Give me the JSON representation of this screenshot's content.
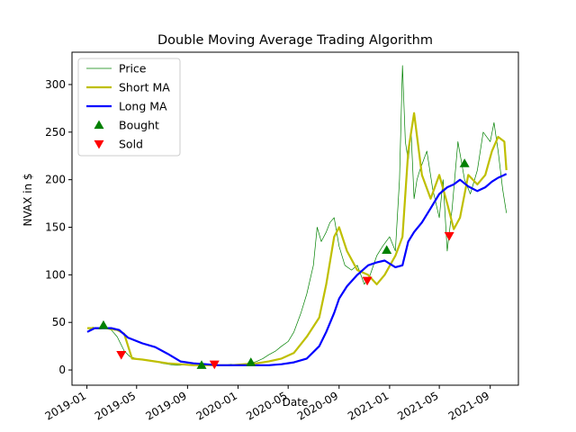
{
  "chart_data": {
    "type": "line",
    "title": "Double Moving Average Trading Algorithm",
    "xlabel": "Date",
    "ylabel": "NVAX in $",
    "xlim": [
      "2018-11-26",
      "2021-11-08"
    ],
    "ylim": [
      -16,
      334
    ],
    "x_ticks": [
      "2019-01",
      "2019-05",
      "2019-09",
      "2020-01",
      "2020-05",
      "2020-09",
      "2021-01",
      "2021-05",
      "2021-09"
    ],
    "y_ticks": [
      0,
      50,
      100,
      150,
      200,
      250,
      300
    ],
    "grid": false,
    "legend_position": "upper-left",
    "colors": {
      "price": "#008000",
      "short_ma": "#bfbf00",
      "long_ma": "#0000ff",
      "bought": "#008000",
      "sold": "#ff0000"
    },
    "series": [
      {
        "name": "Price",
        "x": [
          "2019-01-02",
          "2019-01-15",
          "2019-02-01",
          "2019-02-15",
          "2019-03-01",
          "2019-03-15",
          "2019-04-01",
          "2019-04-15",
          "2019-05-01",
          "2019-05-15",
          "2019-06-01",
          "2019-06-15",
          "2019-07-01",
          "2019-07-15",
          "2019-08-01",
          "2019-08-15",
          "2019-09-01",
          "2019-09-15",
          "2019-10-01",
          "2019-10-15",
          "2019-11-01",
          "2019-11-15",
          "2019-12-01",
          "2019-12-15",
          "2020-01-01",
          "2020-01-15",
          "2020-02-01",
          "2020-02-15",
          "2020-03-01",
          "2020-03-15",
          "2020-04-01",
          "2020-04-15",
          "2020-05-01",
          "2020-05-15",
          "2020-06-01",
          "2020-06-15",
          "2020-07-01",
          "2020-07-10",
          "2020-07-20",
          "2020-08-01",
          "2020-08-10",
          "2020-08-20",
          "2020-09-01",
          "2020-09-15",
          "2020-10-01",
          "2020-10-15",
          "2020-11-01",
          "2020-11-15",
          "2020-12-01",
          "2020-12-15",
          "2021-01-01",
          "2021-01-15",
          "2021-01-25",
          "2021-02-01",
          "2021-02-08",
          "2021-02-15",
          "2021-02-22",
          "2021-03-01",
          "2021-03-08",
          "2021-03-15",
          "2021-04-01",
          "2021-04-15",
          "2021-05-01",
          "2021-05-10",
          "2021-05-20",
          "2021-06-01",
          "2021-06-15",
          "2021-07-01",
          "2021-07-15",
          "2021-08-01",
          "2021-08-15",
          "2021-09-01",
          "2021-09-10",
          "2021-09-20",
          "2021-10-01",
          "2021-10-10"
        ],
        "values": [
          40,
          45,
          43,
          44,
          42,
          35,
          20,
          14,
          12,
          11,
          10,
          9,
          7,
          6,
          5,
          5,
          6,
          5,
          5,
          5,
          5,
          5,
          5,
          6,
          5,
          6,
          7,
          9,
          12,
          16,
          20,
          25,
          30,
          40,
          60,
          80,
          110,
          150,
          135,
          145,
          155,
          160,
          130,
          110,
          105,
          110,
          90,
          100,
          120,
          130,
          140,
          125,
          200,
          320,
          240,
          220,
          250,
          180,
          200,
          210,
          230,
          190,
          160,
          200,
          125,
          170,
          240,
          200,
          185,
          210,
          250,
          240,
          260,
          230,
          190,
          165
        ]
      },
      {
        "name": "Short MA",
        "x": [
          "2019-01-02",
          "2019-02-15",
          "2019-03-15",
          "2019-04-01",
          "2019-04-20",
          "2019-05-15",
          "2019-06-15",
          "2019-07-15",
          "2019-08-15",
          "2019-09-15",
          "2019-10-15",
          "2019-11-15",
          "2019-12-15",
          "2020-01-15",
          "2020-02-15",
          "2020-03-15",
          "2020-04-15",
          "2020-05-15",
          "2020-06-15",
          "2020-07-15",
          "2020-08-01",
          "2020-08-20",
          "2020-09-01",
          "2020-09-20",
          "2020-10-15",
          "2020-11-10",
          "2020-12-01",
          "2020-12-20",
          "2021-01-15",
          "2021-02-01",
          "2021-02-15",
          "2021-03-01",
          "2021-03-20",
          "2021-04-10",
          "2021-05-01",
          "2021-05-20",
          "2021-06-05",
          "2021-06-20",
          "2021-07-10",
          "2021-08-01",
          "2021-08-20",
          "2021-09-05",
          "2021-09-20",
          "2021-10-05",
          "2021-10-10"
        ],
        "values": [
          44,
          44,
          42,
          38,
          12,
          11,
          9,
          7,
          6,
          5,
          5,
          5,
          5,
          6,
          7,
          9,
          12,
          18,
          35,
          55,
          90,
          140,
          150,
          125,
          105,
          100,
          90,
          100,
          120,
          140,
          230,
          270,
          205,
          180,
          205,
          175,
          148,
          160,
          205,
          195,
          205,
          230,
          245,
          240,
          210
        ]
      },
      {
        "name": "Long MA",
        "x": [
          "2019-01-02",
          "2019-01-20",
          "2019-03-01",
          "2019-03-20",
          "2019-04-10",
          "2019-05-15",
          "2019-06-15",
          "2019-07-15",
          "2019-08-15",
          "2019-09-15",
          "2019-10-15",
          "2019-11-15",
          "2019-12-15",
          "2020-01-15",
          "2020-02-15",
          "2020-03-15",
          "2020-04-15",
          "2020-05-15",
          "2020-06-15",
          "2020-07-15",
          "2020-08-01",
          "2020-08-20",
          "2020-09-01",
          "2020-09-20",
          "2020-10-15",
          "2020-11-10",
          "2020-12-01",
          "2020-12-20",
          "2021-01-15",
          "2021-02-01",
          "2021-02-15",
          "2021-03-01",
          "2021-03-20",
          "2021-04-10",
          "2021-05-01",
          "2021-05-20",
          "2021-06-05",
          "2021-06-20",
          "2021-07-10",
          "2021-08-01",
          "2021-08-20",
          "2021-09-05",
          "2021-09-20",
          "2021-10-05",
          "2021-10-10"
        ],
        "values": [
          40,
          44,
          44,
          42,
          34,
          28,
          24,
          17,
          9,
          7,
          6,
          5,
          5,
          5,
          5,
          5,
          6,
          8,
          12,
          25,
          40,
          60,
          75,
          88,
          100,
          110,
          113,
          115,
          108,
          110,
          135,
          145,
          155,
          170,
          185,
          192,
          195,
          200,
          193,
          188,
          192,
          198,
          202,
          205,
          206
        ]
      },
      {
        "name": "Bought",
        "marker": "triangle-up",
        "x": [
          "2019-02-10",
          "2019-10-05",
          "2020-02-01",
          "2020-12-25",
          "2021-07-01"
        ],
        "values": [
          47,
          5,
          8,
          126,
          217
        ]
      },
      {
        "name": "Sold",
        "marker": "triangle-down",
        "x": [
          "2019-03-25",
          "2019-11-05",
          "2020-11-08",
          "2021-05-25"
        ],
        "values": [
          16,
          6,
          94,
          141
        ]
      }
    ]
  }
}
